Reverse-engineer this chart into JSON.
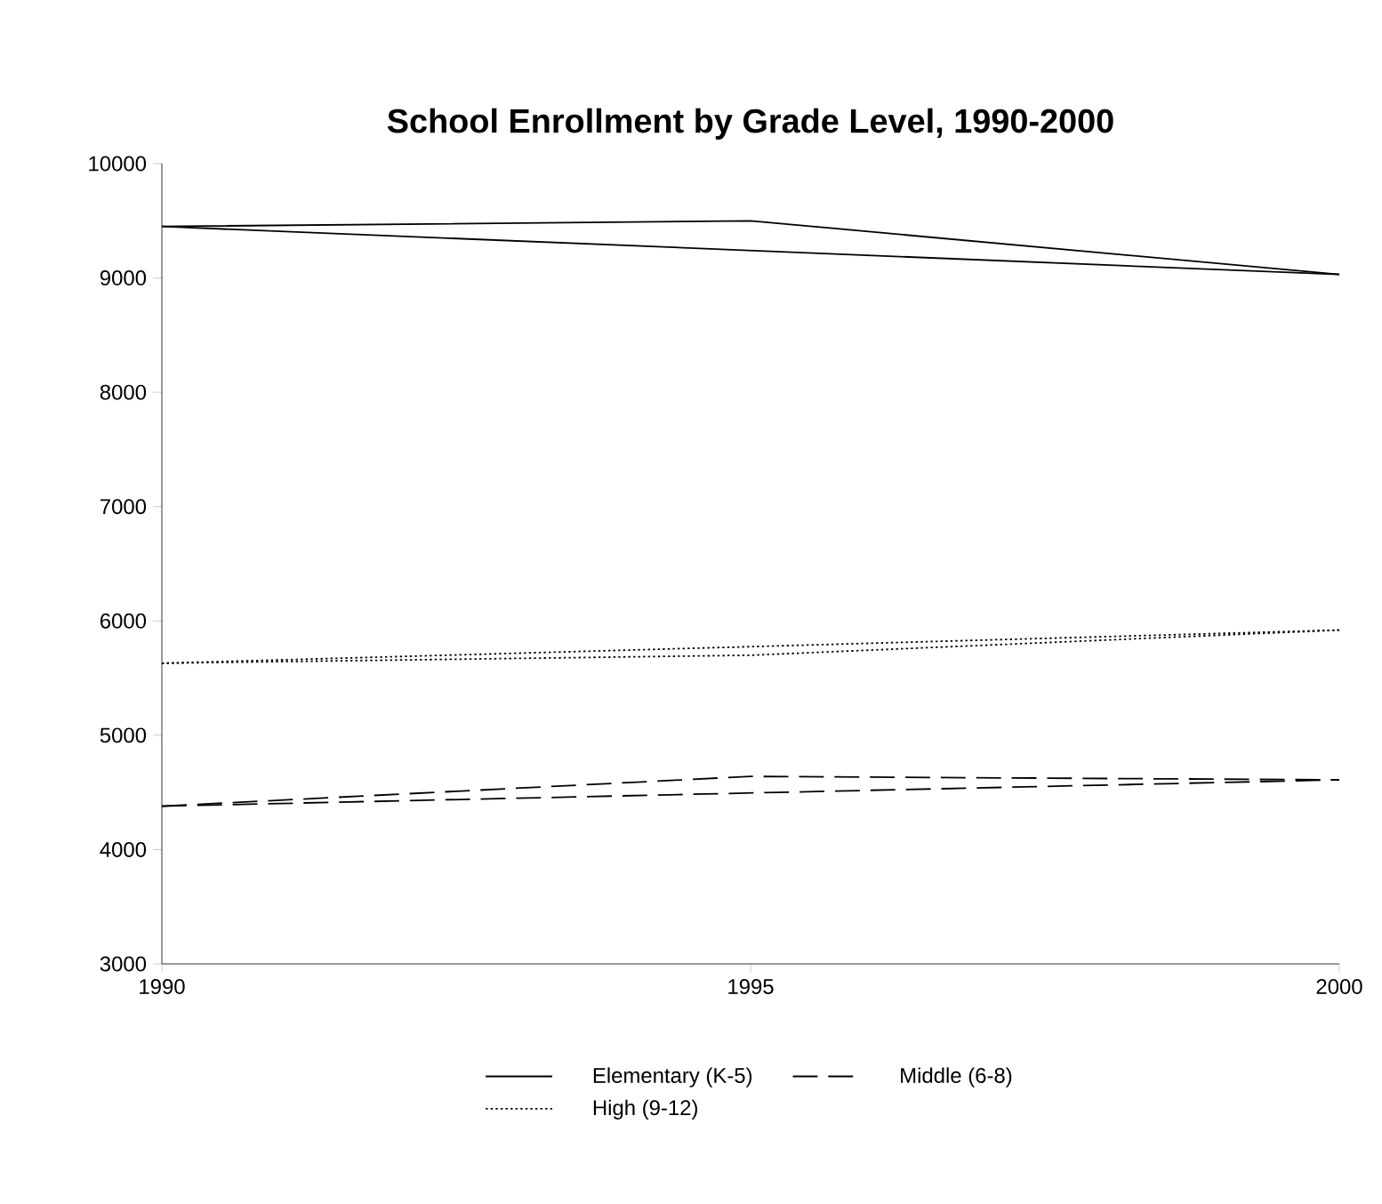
{
  "chart_data": {
    "type": "line",
    "title": "School Enrollment by Grade Level, 1990-2000",
    "x": [
      1990,
      1995,
      2000
    ],
    "series": [
      {
        "name": "Elementary (K-5)",
        "color": "#000000",
        "line_style": "solid",
        "values": [
          9450,
          9500,
          9030
        ]
      },
      {
        "name": "Middle (6-8)",
        "color": "#000000",
        "line_style": "dashed",
        "values": [
          4380,
          4640,
          4610
        ]
      },
      {
        "name": "High (9-12)",
        "color": "#000000",
        "line_style": "dotted",
        "values": [
          5630,
          5700,
          5920
        ]
      },
      {
        "color": "#000000",
        "line_style": "solid",
        "values": [
          9450,
          null,
          9030
        ]
      },
      {
        "color": "#000000",
        "line_style": "dashed",
        "values": [
          4380,
          null,
          4610
        ]
      },
      {
        "color": "#000000",
        "line_style": "dotted",
        "values": [
          5630,
          null,
          5920
        ]
      }
    ],
    "xlim": [
      1990,
      2000
    ],
    "xticks": [
      1990,
      1995,
      2000
    ],
    "ylim": [
      3000,
      10000
    ],
    "yticks": [
      3000,
      4000,
      5000,
      6000,
      7000,
      8000,
      9000,
      10000
    ],
    "grid": false,
    "legend": "bottom",
    "marker": "none"
  }
}
